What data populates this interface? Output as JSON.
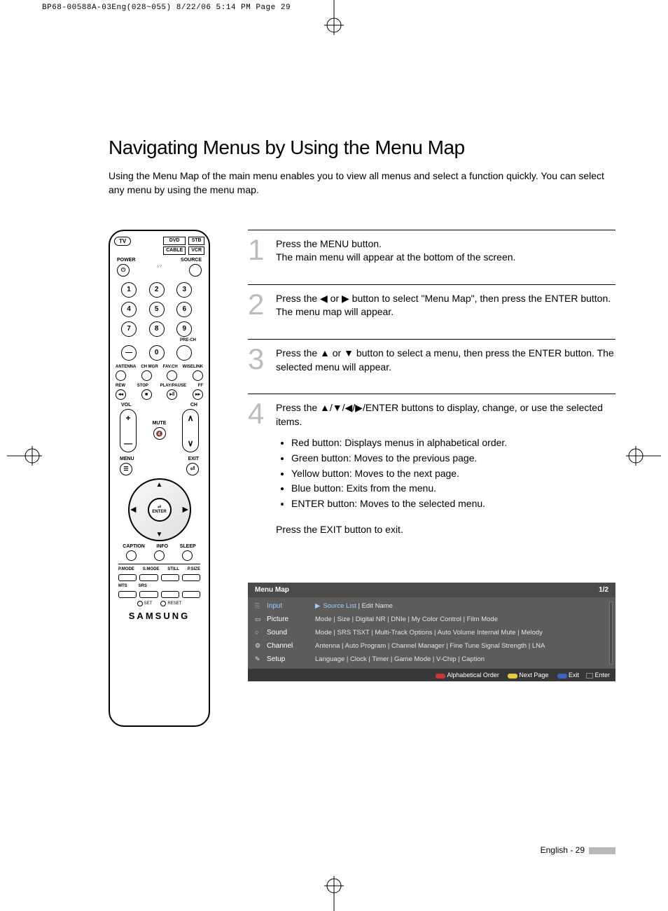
{
  "crop_header": "BP68-00588A-03Eng(028~055)  8/22/06  5:14 PM  Page 29",
  "title": "Navigating Menus by Using the Menu Map",
  "intro": "Using the Menu Map of the main menu enables you to view all menus and select a function quickly. You can select any menu by using the menu map.",
  "remote": {
    "tv": "TV",
    "devices": [
      "DVD",
      "STB",
      "CABLE",
      "VCR"
    ],
    "power": "POWER",
    "source": "SOURCE",
    "prech": "PRE-CH",
    "row_labels": [
      "ANTENNA",
      "CH MGR",
      "FAV.CH",
      "WISELINK"
    ],
    "play_labels": [
      "REW",
      "STOP",
      "PLAY/PAUSE",
      "FF"
    ],
    "vol": "VOL",
    "ch": "CH",
    "mute": "MUTE",
    "menu": "MENU",
    "exit": "EXIT",
    "enter": "ENTER",
    "bottom_labels": [
      "CAPTION",
      "INFO",
      "SLEEP"
    ],
    "grid_labels": [
      "P.MODE",
      "S.MODE",
      "STILL",
      "P.SIZE"
    ],
    "mts_srs": [
      "MTS",
      "SRS"
    ],
    "set": "SET",
    "reset": "RESET",
    "brand": "SAMSUNG"
  },
  "steps": [
    {
      "n": "1",
      "text": "Press the MENU button.\nThe main menu will appear at the bottom of the screen."
    },
    {
      "n": "2",
      "text": "Press the ◀ or ▶ button to select \"Menu Map\", then press the ENTER button. The menu map will appear."
    },
    {
      "n": "3",
      "text": "Press the ▲ or ▼ button to select a menu, then press the ENTER button. The selected menu will appear."
    },
    {
      "n": "4",
      "text": "Press the ▲/▼/◀/▶/ENTER buttons to display, change, or use the selected items.",
      "bullets": [
        "Red button: Displays menus in alphabetical order.",
        "Green button: Moves to the previous page.",
        "Yellow button: Moves to the next page.",
        "Blue button: Exits from the menu.",
        "ENTER button: Moves to the selected menu."
      ],
      "exit": "Press the EXIT button to exit."
    }
  ],
  "osd": {
    "title": "Menu Map",
    "page": "1/2",
    "rows": [
      {
        "icon": "⎘",
        "label": "Input",
        "items": "Source List | Edit Name",
        "active": true
      },
      {
        "icon": "▭",
        "label": "Picture",
        "items": "Mode | Size | Digital NR | DNIe | My Color Control | Film Mode"
      },
      {
        "icon": "○",
        "label": "Sound",
        "items": "Mode | SRS TSXT | Multi-Track Options | Auto Volume Internal Mute | Melody"
      },
      {
        "icon": "⚙",
        "label": "Channel",
        "items": "Antenna | Auto Program | Channel Manager | Fine Tune Signal Strength | LNA"
      },
      {
        "icon": "✎",
        "label": "Setup",
        "items": "Language | Clock | Timer | Game Mode | V-Chip | Caption"
      }
    ],
    "foot": {
      "alpha": "Alphabetical Order",
      "next": "Next Page",
      "exit": "Exit",
      "enter": "Enter"
    }
  },
  "pagenum": "English - 29"
}
